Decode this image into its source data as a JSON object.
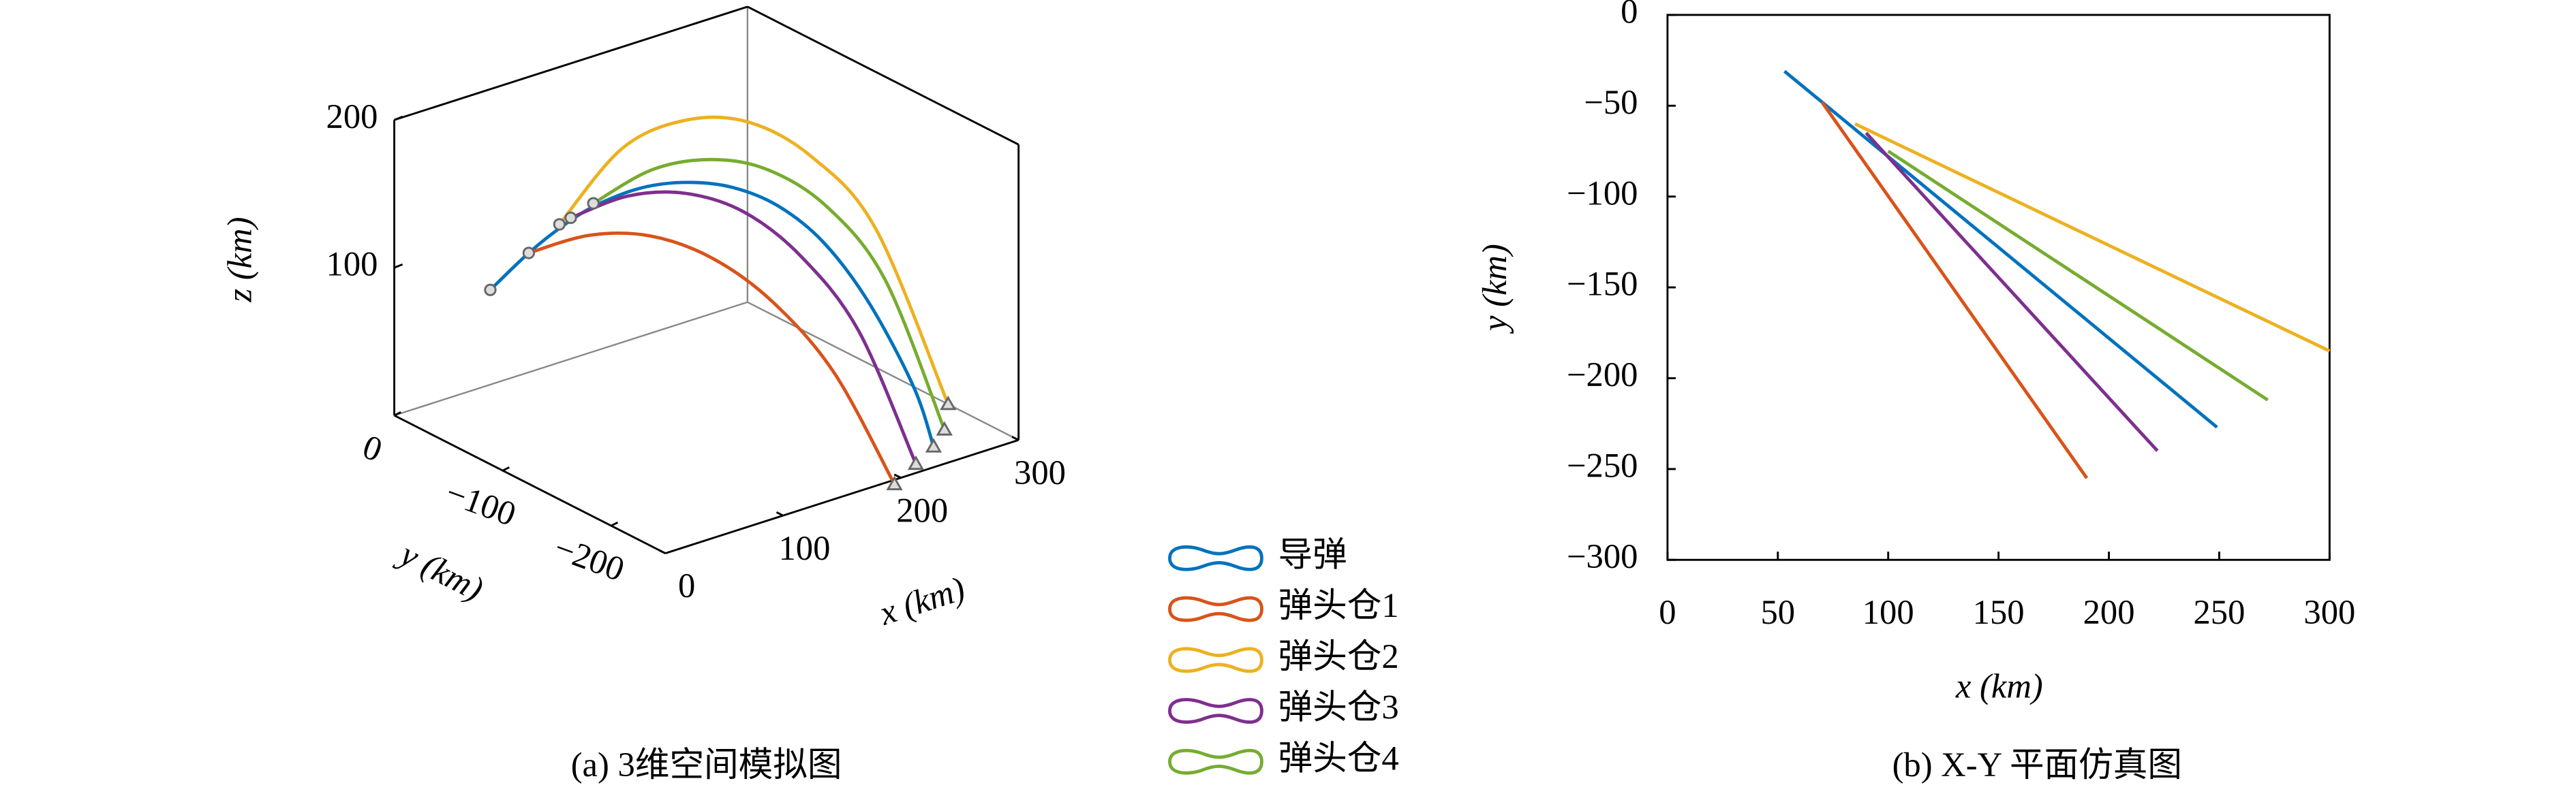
{
  "chart_data": [
    {
      "type": "line3d",
      "title": "(a) 3维空间模拟图",
      "xlabel": "x (km)",
      "ylabel": "y (km)",
      "zlabel": "z (km)",
      "xlim": [
        0,
        300
      ],
      "ylim": [
        -250,
        0
      ],
      "zlim": [
        0,
        200
      ],
      "xticks": [
        0,
        100,
        200,
        300
      ],
      "yticks": [
        0,
        {
          "value": -100,
          "label": "−100"
        },
        {
          "value": -200,
          "label": "−200"
        }
      ],
      "zticks": [
        100,
        200
      ],
      "series": [
        {
          "color": "#0072BD",
          "x": [
            53,
            70,
            85,
            100,
            120,
            140,
            160,
            180,
            200,
            220,
            240,
            249
          ],
          "y": [
            -31,
            -48,
            -63,
            -78,
            -98,
            -118,
            -138,
            -158,
            -178,
            -198,
            -218,
            -227
          ],
          "z": [
            83,
            110,
            130,
            146,
            160,
            166,
            165,
            155,
            133,
            95,
            40,
            0
          ]
        },
        {
          "color": "#D95319",
          "x": [
            70,
            90,
            110,
            130,
            150,
            170,
            190
          ],
          "y": [
            -48,
            -83,
            -117,
            -152,
            -186,
            -221,
            -255
          ],
          "z": [
            110,
            130,
            137,
            130,
            108,
            68,
            0
          ]
        },
        {
          "color": "#EDB120",
          "x": [
            85,
            120,
            155,
            190,
            225,
            260,
            300
          ],
          "y": [
            -60,
            -80,
            -101,
            -121,
            -141,
            -162,
            -185
          ],
          "z": [
            130,
            180,
            198,
            195,
            170,
            120,
            0
          ]
        },
        {
          "color": "#7E2F8E",
          "x": [
            90,
            112,
            134,
            156,
            178,
            200,
            222
          ],
          "y": [
            -65,
            -94,
            -123,
            -153,
            -182,
            -211,
            -240
          ],
          "z": [
            135,
            155,
            162,
            155,
            130,
            85,
            0
          ]
        },
        {
          "color": "#77AC30",
          "x": [
            100,
            129,
            158,
            186,
            215,
            243,
            272
          ],
          "y": [
            -75,
            -98,
            -121,
            -143,
            -166,
            -189,
            -212
          ],
          "z": [
            146,
            170,
            178,
            172,
            148,
            100,
            0
          ]
        }
      ]
    },
    {
      "type": "line",
      "title": "(b) X-Y 平面仿真图",
      "xlabel": "x (km)",
      "ylabel": "y (km)",
      "xlim": [
        0,
        300
      ],
      "ylim": [
        -300,
        0
      ],
      "xticks": [
        0,
        50,
        100,
        150,
        200,
        250,
        300
      ],
      "yticks": [
        0,
        {
          "value": -50,
          "label": "−50"
        },
        {
          "value": -100,
          "label": "−100"
        },
        {
          "value": -150,
          "label": "−150"
        },
        {
          "value": -200,
          "label": "−200"
        },
        {
          "value": -250,
          "label": "−250"
        },
        {
          "value": -300,
          "label": "−300"
        }
      ],
      "series": [
        {
          "name": "导弹",
          "color": "#0072BD",
          "x": [
            53,
            249
          ],
          "y": [
            -31,
            -227
          ]
        },
        {
          "name": "弹头仓1",
          "color": "#D95319",
          "x": [
            70,
            190
          ],
          "y": [
            -48,
            -255
          ]
        },
        {
          "name": "弹头仓2",
          "color": "#EDB120",
          "x": [
            85,
            300
          ],
          "y": [
            -60,
            -185
          ]
        },
        {
          "name": "弹头仓3",
          "color": "#7E2F8E",
          "x": [
            90,
            222
          ],
          "y": [
            -65,
            -240
          ]
        },
        {
          "name": "弹头仓4",
          "color": "#77AC30",
          "x": [
            100,
            272
          ],
          "y": [
            -75,
            -212
          ]
        }
      ]
    }
  ]
}
